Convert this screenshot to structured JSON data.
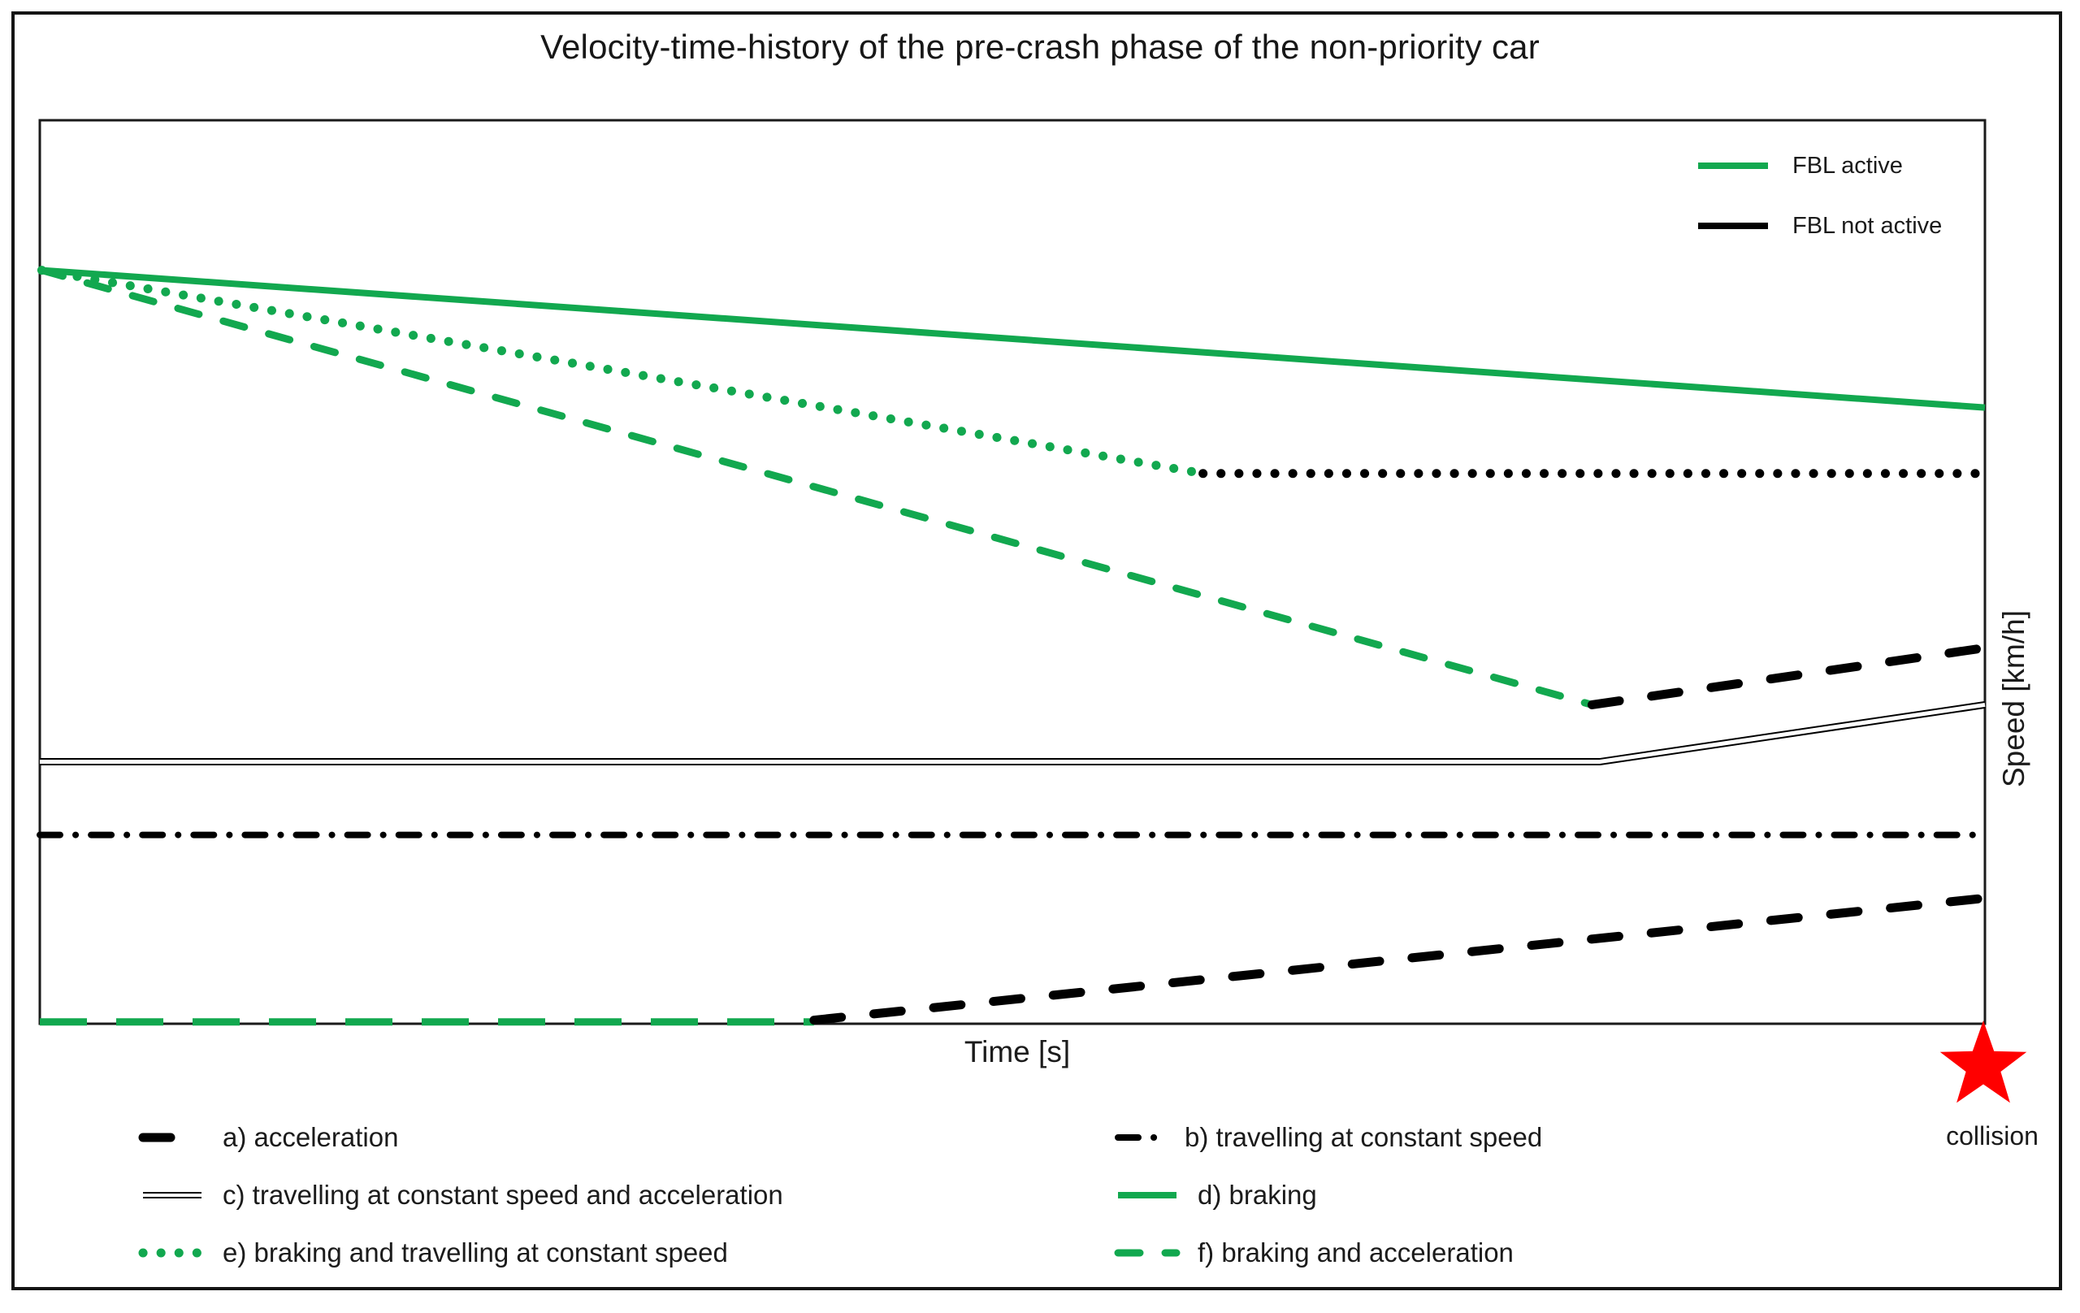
{
  "figure": {
    "collision_label": "collision"
  },
  "legend_top": {
    "items": [
      {
        "label": "FBL active",
        "style": "green_solid"
      },
      {
        "label": "FBL not active",
        "style": "black_solid"
      }
    ]
  },
  "legend_bottom": {
    "items": [
      {
        "key": "a",
        "label": "a) acceleration",
        "style": "black_heavy_dash"
      },
      {
        "key": "c",
        "label": "c) travelling at constant speed and acceleration",
        "style": "black_double"
      },
      {
        "key": "e",
        "label": "e) braking and travelling at constant speed",
        "style": "green_dot"
      },
      {
        "key": "b",
        "label": "b) travelling at constant speed",
        "style": "black_dashdot"
      },
      {
        "key": "d",
        "label": "d) braking",
        "style": "green_solid"
      },
      {
        "key": "f",
        "label": "f) braking and acceleration",
        "style": "green_dash"
      }
    ]
  },
  "chart_data": {
    "type": "line",
    "title": "Velocity-time-history of the pre-crash phase of the non-priority car",
    "xlabel": "Time [s]",
    "ylabel": "Speed [km/h]",
    "grid": false,
    "x_axis": {
      "ticks": [],
      "note": "qualitative time axis, no tick labels shown"
    },
    "y_axis": {
      "ticks": [],
      "note": "qualitative speed axis, no tick labels shown"
    },
    "legend_position": "FBL-state legend inside plot top-right; scenario legend below chart in two columns",
    "colors": {
      "fbl_active_green": "#12A84F",
      "fbl_not_active_black": "#000000",
      "collision_red": "#FF0000",
      "axis_black": "#1a1a1a"
    },
    "styles": {
      "green_solid": {
        "color": "#12A84F",
        "width": 8,
        "dash": null,
        "cap": "butt"
      },
      "black_solid": {
        "color": "#000000",
        "width": 8,
        "dash": null,
        "cap": "butt"
      },
      "green_dot": {
        "color": "#12A84F",
        "width": 11,
        "dash": [
          0.1,
          22
        ],
        "cap": "round"
      },
      "black_dot": {
        "color": "#000000",
        "width": 11,
        "dash": [
          0.1,
          22
        ],
        "cap": "round"
      },
      "green_dash": {
        "color": "#12A84F",
        "width": 9,
        "dash": [
          27,
          31
        ],
        "cap": "round"
      },
      "green_dash_long": {
        "color": "#12A84F",
        "width": 9,
        "dash": [
          58,
          36
        ],
        "cap": "butt"
      },
      "black_heavy_dash": {
        "color": "#000000",
        "width": 11,
        "dash": [
          34,
          40
        ],
        "cap": "round"
      },
      "black_dashdot": {
        "color": "#000000",
        "width": 8,
        "dash": [
          25,
          19,
          0.1,
          19
        ],
        "cap": "round"
      },
      "black_double": {
        "color": "#000000",
        "width": 9,
        "dash": null,
        "cap": "butt",
        "double": true,
        "gap_color": "#FFFFFF",
        "gap_width": 5
      }
    },
    "series": [
      {
        "id": "a-green",
        "scenario": "a) acceleration",
        "fbl": "active",
        "style": "green_dash_long",
        "points": [
          [
            0.0,
            0.002
          ],
          [
            0.398,
            0.002
          ]
        ]
      },
      {
        "id": "a-black",
        "scenario": "a) acceleration",
        "fbl": "not active",
        "style": "black_heavy_dash",
        "points": [
          [
            0.398,
            0.004
          ],
          [
            1.0,
            0.139
          ]
        ]
      },
      {
        "id": "b-black",
        "scenario": "b) travelling at constant speed",
        "fbl": "not active",
        "style": "black_dashdot",
        "points": [
          [
            0.0,
            0.209
          ],
          [
            1.0,
            0.209
          ]
        ]
      },
      {
        "id": "c-black",
        "scenario": "c) travelling at constant speed and acceleration",
        "fbl": "not active",
        "style": "black_double",
        "points": [
          [
            0.0,
            0.29
          ],
          [
            0.802,
            0.29
          ],
          [
            1.0,
            0.353
          ]
        ]
      },
      {
        "id": "d-green",
        "scenario": "d) braking",
        "fbl": "active",
        "style": "green_solid",
        "points": [
          [
            0.001,
            0.834
          ],
          [
            1.0,
            0.682
          ]
        ]
      },
      {
        "id": "e-green",
        "scenario": "e) braking and travelling at constant speed",
        "fbl": "active",
        "style": "green_dot",
        "points": [
          [
            0.001,
            0.834
          ],
          [
            0.598,
            0.609
          ]
        ]
      },
      {
        "id": "e-black",
        "scenario": "e) braking and travelling at constant speed",
        "fbl": "not active",
        "style": "black_dot",
        "points": [
          [
            0.598,
            0.609
          ],
          [
            1.0,
            0.609
          ]
        ]
      },
      {
        "id": "f-green",
        "scenario": "f) braking and acceleration",
        "fbl": "active",
        "style": "green_dash",
        "points": [
          [
            0.001,
            0.834
          ],
          [
            0.798,
            0.353
          ]
        ]
      },
      {
        "id": "f-black",
        "scenario": "f) braking and acceleration",
        "fbl": "not active",
        "style": "black_heavy_dash",
        "points": [
          [
            0.798,
            0.353
          ],
          [
            1.0,
            0.416
          ]
        ]
      }
    ],
    "event_marker": {
      "label": "collision",
      "shape": "star",
      "color": "#FF0000",
      "x": 1.0,
      "y": 0.0
    }
  }
}
